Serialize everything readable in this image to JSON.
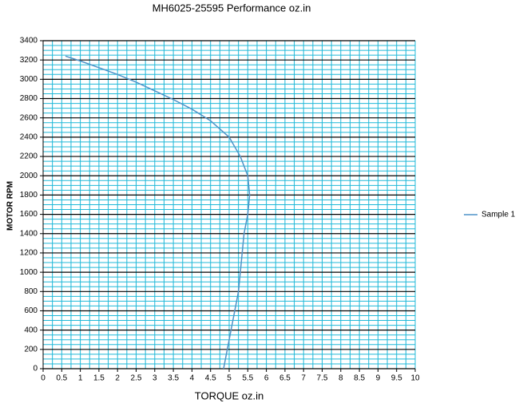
{
  "chart_data": {
    "type": "line",
    "title": "MH6025-25595    Performance oz.in",
    "x_label": "TORQUE  oz.in",
    "y_label": "MOTOR RPM",
    "x": [
      0.6,
      1,
      1.5,
      2,
      2.5,
      3,
      3.5,
      4,
      4.5,
      5,
      5.3,
      5.5,
      5.55,
      5.5,
      5.4,
      5.35,
      5.3,
      5.25,
      5.15,
      5.05,
      4.95,
      4.85
    ],
    "series": [
      {
        "name": "Sample 1",
        "color": "#4f93c8",
        "values": [
          3240,
          3190,
          3120,
          3050,
          2970,
          2880,
          2790,
          2690,
          2570,
          2400,
          2200,
          2000,
          1800,
          1600,
          1400,
          1200,
          1000,
          800,
          600,
          400,
          200,
          0
        ]
      }
    ],
    "xlim": [
      0,
      10
    ],
    "xticks": [
      0,
      0.5,
      1,
      1.5,
      2,
      2.5,
      3,
      3.5,
      4,
      4.5,
      5,
      5.5,
      6,
      6.5,
      7,
      7.5,
      8,
      8.5,
      9,
      9.5,
      10
    ],
    "ylim": [
      0,
      3400
    ],
    "yticks": [
      0,
      200,
      400,
      600,
      800,
      1000,
      1200,
      1400,
      1600,
      1800,
      2000,
      2200,
      2400,
      2600,
      2800,
      3000,
      3200,
      3400
    ],
    "grid": true,
    "legend": "right"
  }
}
